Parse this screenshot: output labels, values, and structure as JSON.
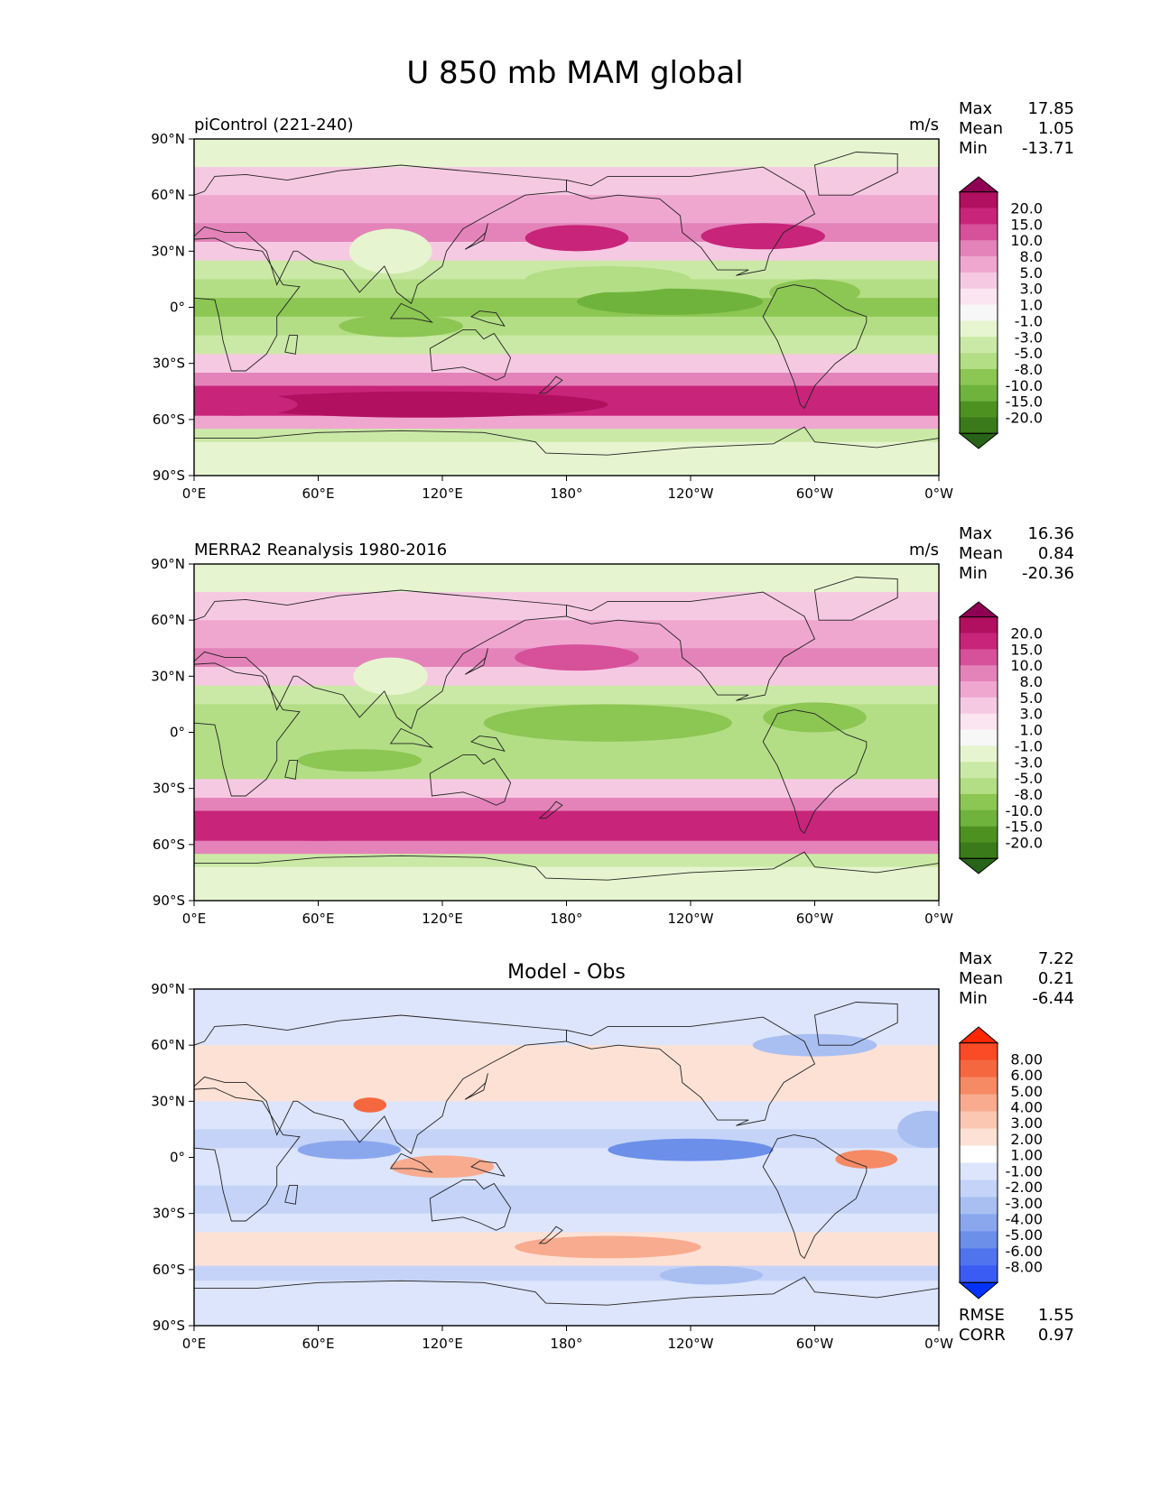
{
  "title": "U 850 mb MAM global",
  "chart_data": [
    {
      "type": "heatmap",
      "title": "piControl (221-240)",
      "units": "m/s",
      "stats": {
        "max_label": "Max",
        "max": "17.85",
        "mean_label": "Mean",
        "mean": "1.05",
        "min_label": "Min",
        "min": "-13.71"
      },
      "x_ticks": [
        "0°E",
        "60°E",
        "120°E",
        "180°",
        "120°W",
        "60°W",
        "0°W"
      ],
      "y_ticks": [
        "90°N",
        "60°N",
        "30°N",
        "0°",
        "30°S",
        "60°S",
        "90°S"
      ],
      "xlim": [
        0,
        360
      ],
      "ylim": [
        -90,
        90
      ],
      "colorbar": {
        "labels": [
          "20.0",
          "15.0",
          "10.0",
          "8.0",
          "5.0",
          "3.0",
          "1.0",
          "-1.0",
          "-3.0",
          "-5.0",
          "-8.0",
          "-10.0",
          "-15.0",
          "-20.0"
        ],
        "colors": [
          "#8e0152",
          "#b0105f",
          "#c8247a",
          "#d6509a",
          "#e483b9",
          "#efa7d0",
          "#f6c9e3",
          "#fbe5f0",
          "#f7f7f7",
          "#e6f5d0",
          "#cbe9a6",
          "#b3de85",
          "#8cc653",
          "#6fb33d",
          "#4d9221",
          "#3a7a1a",
          "#276419"
        ]
      },
      "bands": [
        {
          "lat_from": 90,
          "lat_to": 75,
          "value": -0.5
        },
        {
          "lat_from": 75,
          "lat_to": 60,
          "value": 2
        },
        {
          "lat_from": 60,
          "lat_to": 45,
          "value": 4
        },
        {
          "lat_from": 45,
          "lat_to": 35,
          "value": 6
        },
        {
          "lat_from": 35,
          "lat_to": 25,
          "value": 2.5
        },
        {
          "lat_from": 25,
          "lat_to": 15,
          "value": -2
        },
        {
          "lat_from": 15,
          "lat_to": 5,
          "value": -5
        },
        {
          "lat_from": 5,
          "lat_to": -5,
          "value": -6
        },
        {
          "lat_from": -5,
          "lat_to": -15,
          "value": -4
        },
        {
          "lat_from": -15,
          "lat_to": -25,
          "value": -3
        },
        {
          "lat_from": -25,
          "lat_to": -35,
          "value": 1.5
        },
        {
          "lat_from": -35,
          "lat_to": -42,
          "value": 6
        },
        {
          "lat_from": -42,
          "lat_to": -58,
          "value": 11
        },
        {
          "lat_from": -58,
          "lat_to": -65,
          "value": 4
        },
        {
          "lat_from": -65,
          "lat_to": -72,
          "value": -1.5
        },
        {
          "lat_from": -72,
          "lat_to": -90,
          "value": 0
        }
      ],
      "blobs": [
        {
          "lon": 230,
          "lat": 3,
          "rx": 45,
          "ry": 7,
          "value": -10
        },
        {
          "lon": 200,
          "lat": 15,
          "rx": 40,
          "ry": 7,
          "value": -5
        },
        {
          "lon": 185,
          "lat": 37,
          "rx": 25,
          "ry": 7,
          "value": 12
        },
        {
          "lon": 275,
          "lat": 38,
          "rx": 30,
          "ry": 7,
          "value": 10
        },
        {
          "lon": 95,
          "lat": 30,
          "rx": 20,
          "ry": 12,
          "value": 0
        },
        {
          "lon": 110,
          "lat": -52,
          "rx": 90,
          "ry": 7,
          "value": 15
        },
        {
          "lon": 20,
          "lat": -52,
          "rx": 30,
          "ry": 6,
          "value": 12
        },
        {
          "lon": 100,
          "lat": -10,
          "rx": 30,
          "ry": 6,
          "value": -8
        },
        {
          "lon": 300,
          "lat": 8,
          "rx": 22,
          "ry": 7,
          "value": -7
        }
      ]
    },
    {
      "type": "heatmap",
      "title": "MERRA2 Reanalysis 1980-2016",
      "units": "m/s",
      "stats": {
        "max_label": "Max",
        "max": "16.36",
        "mean_label": "Mean",
        "mean": "0.84",
        "min_label": "Min",
        "min": "-20.36"
      },
      "x_ticks": [
        "0°E",
        "60°E",
        "120°E",
        "180°",
        "120°W",
        "60°W",
        "0°W"
      ],
      "y_ticks": [
        "90°N",
        "60°N",
        "30°N",
        "0°",
        "30°S",
        "60°S",
        "90°S"
      ],
      "xlim": [
        0,
        360
      ],
      "ylim": [
        -90,
        90
      ],
      "colorbar": {
        "labels": [
          "20.0",
          "15.0",
          "10.0",
          "8.0",
          "5.0",
          "3.0",
          "1.0",
          "-1.0",
          "-3.0",
          "-5.0",
          "-8.0",
          "-10.0",
          "-15.0",
          "-20.0"
        ],
        "colors": [
          "#8e0152",
          "#b0105f",
          "#c8247a",
          "#d6509a",
          "#e483b9",
          "#efa7d0",
          "#f6c9e3",
          "#fbe5f0",
          "#f7f7f7",
          "#e6f5d0",
          "#cbe9a6",
          "#b3de85",
          "#8cc653",
          "#6fb33d",
          "#4d9221",
          "#3a7a1a",
          "#276419"
        ]
      },
      "bands": [
        {
          "lat_from": 90,
          "lat_to": 75,
          "value": 0.5
        },
        {
          "lat_from": 75,
          "lat_to": 60,
          "value": 2.5
        },
        {
          "lat_from": 60,
          "lat_to": 45,
          "value": 4
        },
        {
          "lat_from": 45,
          "lat_to": 35,
          "value": 5
        },
        {
          "lat_from": 35,
          "lat_to": 25,
          "value": 2
        },
        {
          "lat_from": 25,
          "lat_to": 15,
          "value": -2
        },
        {
          "lat_from": 15,
          "lat_to": 5,
          "value": -5
        },
        {
          "lat_from": 5,
          "lat_to": -5,
          "value": -5
        },
        {
          "lat_from": -5,
          "lat_to": -15,
          "value": -3.5
        },
        {
          "lat_from": -15,
          "lat_to": -25,
          "value": -4
        },
        {
          "lat_from": -25,
          "lat_to": -35,
          "value": 1
        },
        {
          "lat_from": -35,
          "lat_to": -42,
          "value": 6
        },
        {
          "lat_from": -42,
          "lat_to": -58,
          "value": 11
        },
        {
          "lat_from": -58,
          "lat_to": -65,
          "value": 5
        },
        {
          "lat_from": -65,
          "lat_to": -72,
          "value": -1.5
        },
        {
          "lat_from": -72,
          "lat_to": -90,
          "value": 0
        }
      ],
      "blobs": [
        {
          "lon": 200,
          "lat": 5,
          "rx": 60,
          "ry": 10,
          "value": -7
        },
        {
          "lon": 185,
          "lat": 40,
          "rx": 30,
          "ry": 7,
          "value": 9
        },
        {
          "lon": 60,
          "lat": -52,
          "rx": 50,
          "ry": 6,
          "value": 14
        },
        {
          "lon": 340,
          "lat": -50,
          "rx": 30,
          "ry": 6,
          "value": 13
        },
        {
          "lon": 95,
          "lat": 30,
          "rx": 18,
          "ry": 10,
          "value": 0
        },
        {
          "lon": 300,
          "lat": 8,
          "rx": 25,
          "ry": 8,
          "value": -7
        },
        {
          "lon": 80,
          "lat": -15,
          "rx": 30,
          "ry": 6,
          "value": -6
        }
      ]
    },
    {
      "type": "heatmap",
      "title": "Model - Obs",
      "units": "",
      "stats": {
        "max_label": "Max",
        "max": "7.22",
        "mean_label": "Mean",
        "mean": "0.21",
        "min_label": "Min",
        "min": "-6.44"
      },
      "metrics": {
        "rmse_label": "RMSE",
        "rmse": "1.55",
        "corr_label": "CORR",
        "corr": "0.97"
      },
      "x_ticks": [
        "0°E",
        "60°E",
        "120°E",
        "180°",
        "120°W",
        "60°W",
        "0°W"
      ],
      "y_ticks": [
        "90°N",
        "60°N",
        "30°N",
        "0°",
        "30°S",
        "60°S",
        "90°S"
      ],
      "xlim": [
        0,
        360
      ],
      "ylim": [
        -90,
        90
      ],
      "colorbar": {
        "labels": [
          "8.00",
          "6.00",
          "5.00",
          "4.00",
          "3.00",
          "2.00",
          "1.00",
          "-1.00",
          "-2.00",
          "-3.00",
          "-4.00",
          "-5.00",
          "-6.00",
          "-8.00"
        ],
        "colors": [
          "#ff2600",
          "#fa4a26",
          "#f5683f",
          "#f58a64",
          "#f8ab8f",
          "#fbc7b3",
          "#fde1d5",
          "#ffffff",
          "#dce5fb",
          "#c4d3f7",
          "#a9bff2",
          "#8aa7ee",
          "#6c8fea",
          "#4f74ee",
          "#3b5cf2",
          "#0033ff"
        ]
      },
      "bands": [
        {
          "lat_from": 90,
          "lat_to": 75,
          "value": -0.8
        },
        {
          "lat_from": 75,
          "lat_to": 60,
          "value": 0
        },
        {
          "lat_from": 60,
          "lat_to": 45,
          "value": 1.2
        },
        {
          "lat_from": 45,
          "lat_to": 30,
          "value": 1.8
        },
        {
          "lat_from": 30,
          "lat_to": 15,
          "value": 0.5
        },
        {
          "lat_from": 15,
          "lat_to": 5,
          "value": -1.5
        },
        {
          "lat_from": 5,
          "lat_to": -5,
          "value": 0.5
        },
        {
          "lat_from": -5,
          "lat_to": -15,
          "value": -0.5
        },
        {
          "lat_from": -15,
          "lat_to": -30,
          "value": -1.3
        },
        {
          "lat_from": -30,
          "lat_to": -40,
          "value": 0
        },
        {
          "lat_from": -40,
          "lat_to": -58,
          "value": 1.5
        },
        {
          "lat_from": -58,
          "lat_to": -66,
          "value": -1.2
        },
        {
          "lat_from": -66,
          "lat_to": -90,
          "value": -0.3
        }
      ],
      "blobs": [
        {
          "lon": 240,
          "lat": 4,
          "rx": 40,
          "ry": 6,
          "value": -4.5
        },
        {
          "lon": 75,
          "lat": 4,
          "rx": 25,
          "ry": 5,
          "value": -3.2
        },
        {
          "lon": 325,
          "lat": -1,
          "rx": 15,
          "ry": 5,
          "value": 4.5
        },
        {
          "lon": 120,
          "lat": -5,
          "rx": 25,
          "ry": 6,
          "value": 3
        },
        {
          "lon": 200,
          "lat": -48,
          "rx": 45,
          "ry": 6,
          "value": 3.2
        },
        {
          "lon": 85,
          "lat": 28,
          "rx": 8,
          "ry": 4,
          "value": 5
        },
        {
          "lon": 250,
          "lat": -63,
          "rx": 25,
          "ry": 5,
          "value": -3
        },
        {
          "lon": 300,
          "lat": 60,
          "rx": 30,
          "ry": 6,
          "value": -2.5
        },
        {
          "lon": 355,
          "lat": 15,
          "rx": 15,
          "ry": 10,
          "value": -3
        }
      ]
    }
  ]
}
